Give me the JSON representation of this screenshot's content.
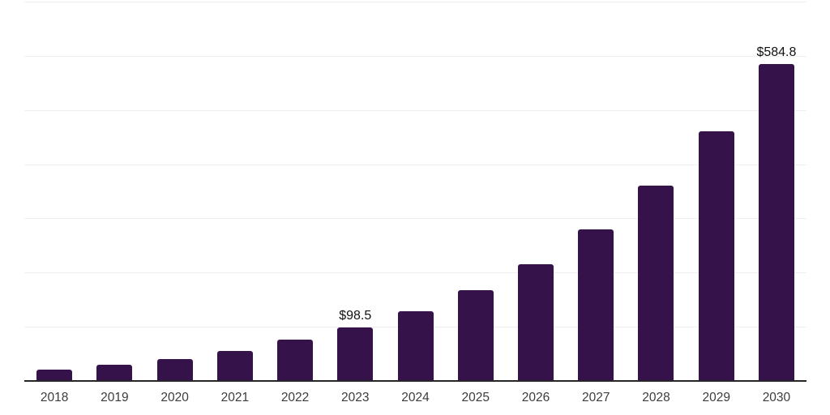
{
  "chart_data": {
    "type": "bar",
    "title": "",
    "xlabel": "",
    "ylabel": "",
    "categories": [
      "2018",
      "2019",
      "2020",
      "2021",
      "2022",
      "2023",
      "2024",
      "2025",
      "2026",
      "2027",
      "2028",
      "2029",
      "2030"
    ],
    "values": [
      21.5,
      30,
      41,
      56,
      76,
      98.5,
      129,
      167,
      216,
      279,
      360,
      460,
      584.8
    ],
    "data_labels": {
      "2023": "$98.5",
      "2030": "$584.8"
    },
    "ylim": [
      0,
      700
    ],
    "gridline_interval": 100,
    "grid": "horizontal",
    "legend": "none",
    "colors": {
      "bar": "#351249",
      "axis_line": "#262626",
      "gridline": "#efeff1",
      "value_label": "#111111",
      "tick_label": "#3c3c3c",
      "background": "#ffffff"
    }
  }
}
